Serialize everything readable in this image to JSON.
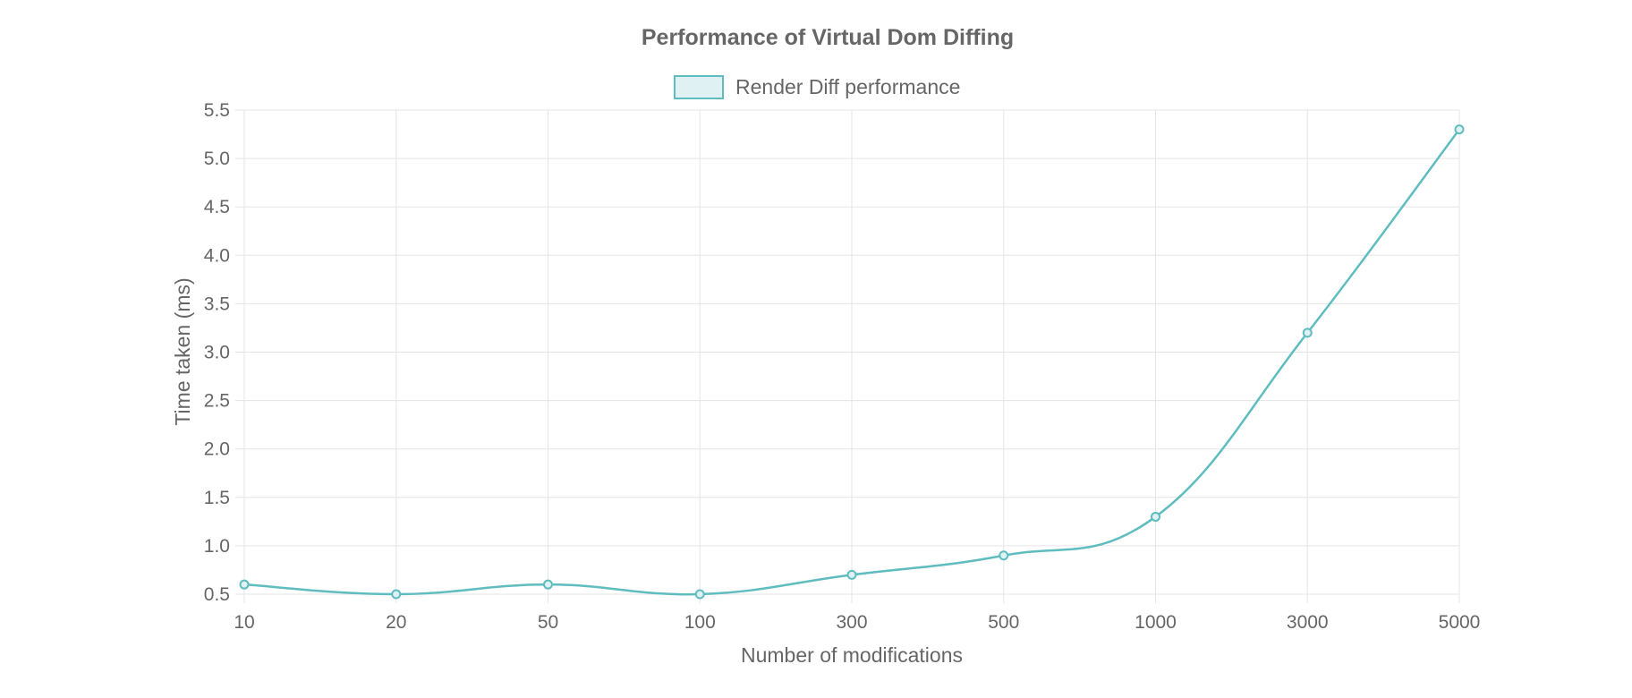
{
  "chart_data": {
    "type": "line",
    "title": "Performance of Virtual Dom Diffing",
    "xlabel": "Number of modifications",
    "ylabel": "Time taken (ms)",
    "categories": [
      "10",
      "20",
      "50",
      "100",
      "300",
      "500",
      "1000",
      "3000",
      "5000"
    ],
    "series": [
      {
        "name": "Render Diff performance",
        "values": [
          0.6,
          0.5,
          0.6,
          0.5,
          0.7,
          0.9,
          1.3,
          3.2,
          5.3
        ],
        "color": "#5fbcbf",
        "fill": "#dff1f2"
      }
    ],
    "ylim": [
      0.5,
      5.5
    ],
    "yticks": [
      "0.5",
      "1.0",
      "1.5",
      "2.0",
      "2.5",
      "3.0",
      "3.5",
      "4.0",
      "4.5",
      "5.0",
      "5.5"
    ],
    "grid": true,
    "legend_position": "top"
  }
}
